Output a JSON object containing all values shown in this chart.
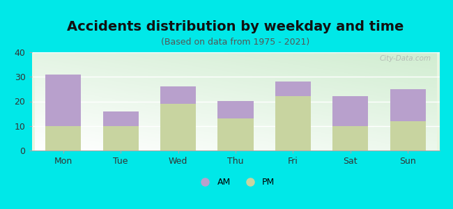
{
  "title": "Accidents distribution by weekday and time",
  "subtitle": "(Based on data from 1975 - 2021)",
  "categories": [
    "Mon",
    "Tue",
    "Wed",
    "Thu",
    "Fri",
    "Sat",
    "Sun"
  ],
  "pm_values": [
    10,
    10,
    19,
    13,
    22,
    10,
    12
  ],
  "am_values": [
    21,
    6,
    7,
    7,
    6,
    12,
    13
  ],
  "am_color": "#b8a0cc",
  "pm_color": "#c8d4a0",
  "background_color": "#00e8e8",
  "ylim": [
    0,
    40
  ],
  "yticks": [
    0,
    10,
    20,
    30,
    40
  ],
  "bar_width": 0.62,
  "legend_am": "AM",
  "legend_pm": "PM",
  "watermark": "City-Data.com",
  "title_fontsize": 14,
  "subtitle_fontsize": 9,
  "tick_fontsize": 9
}
